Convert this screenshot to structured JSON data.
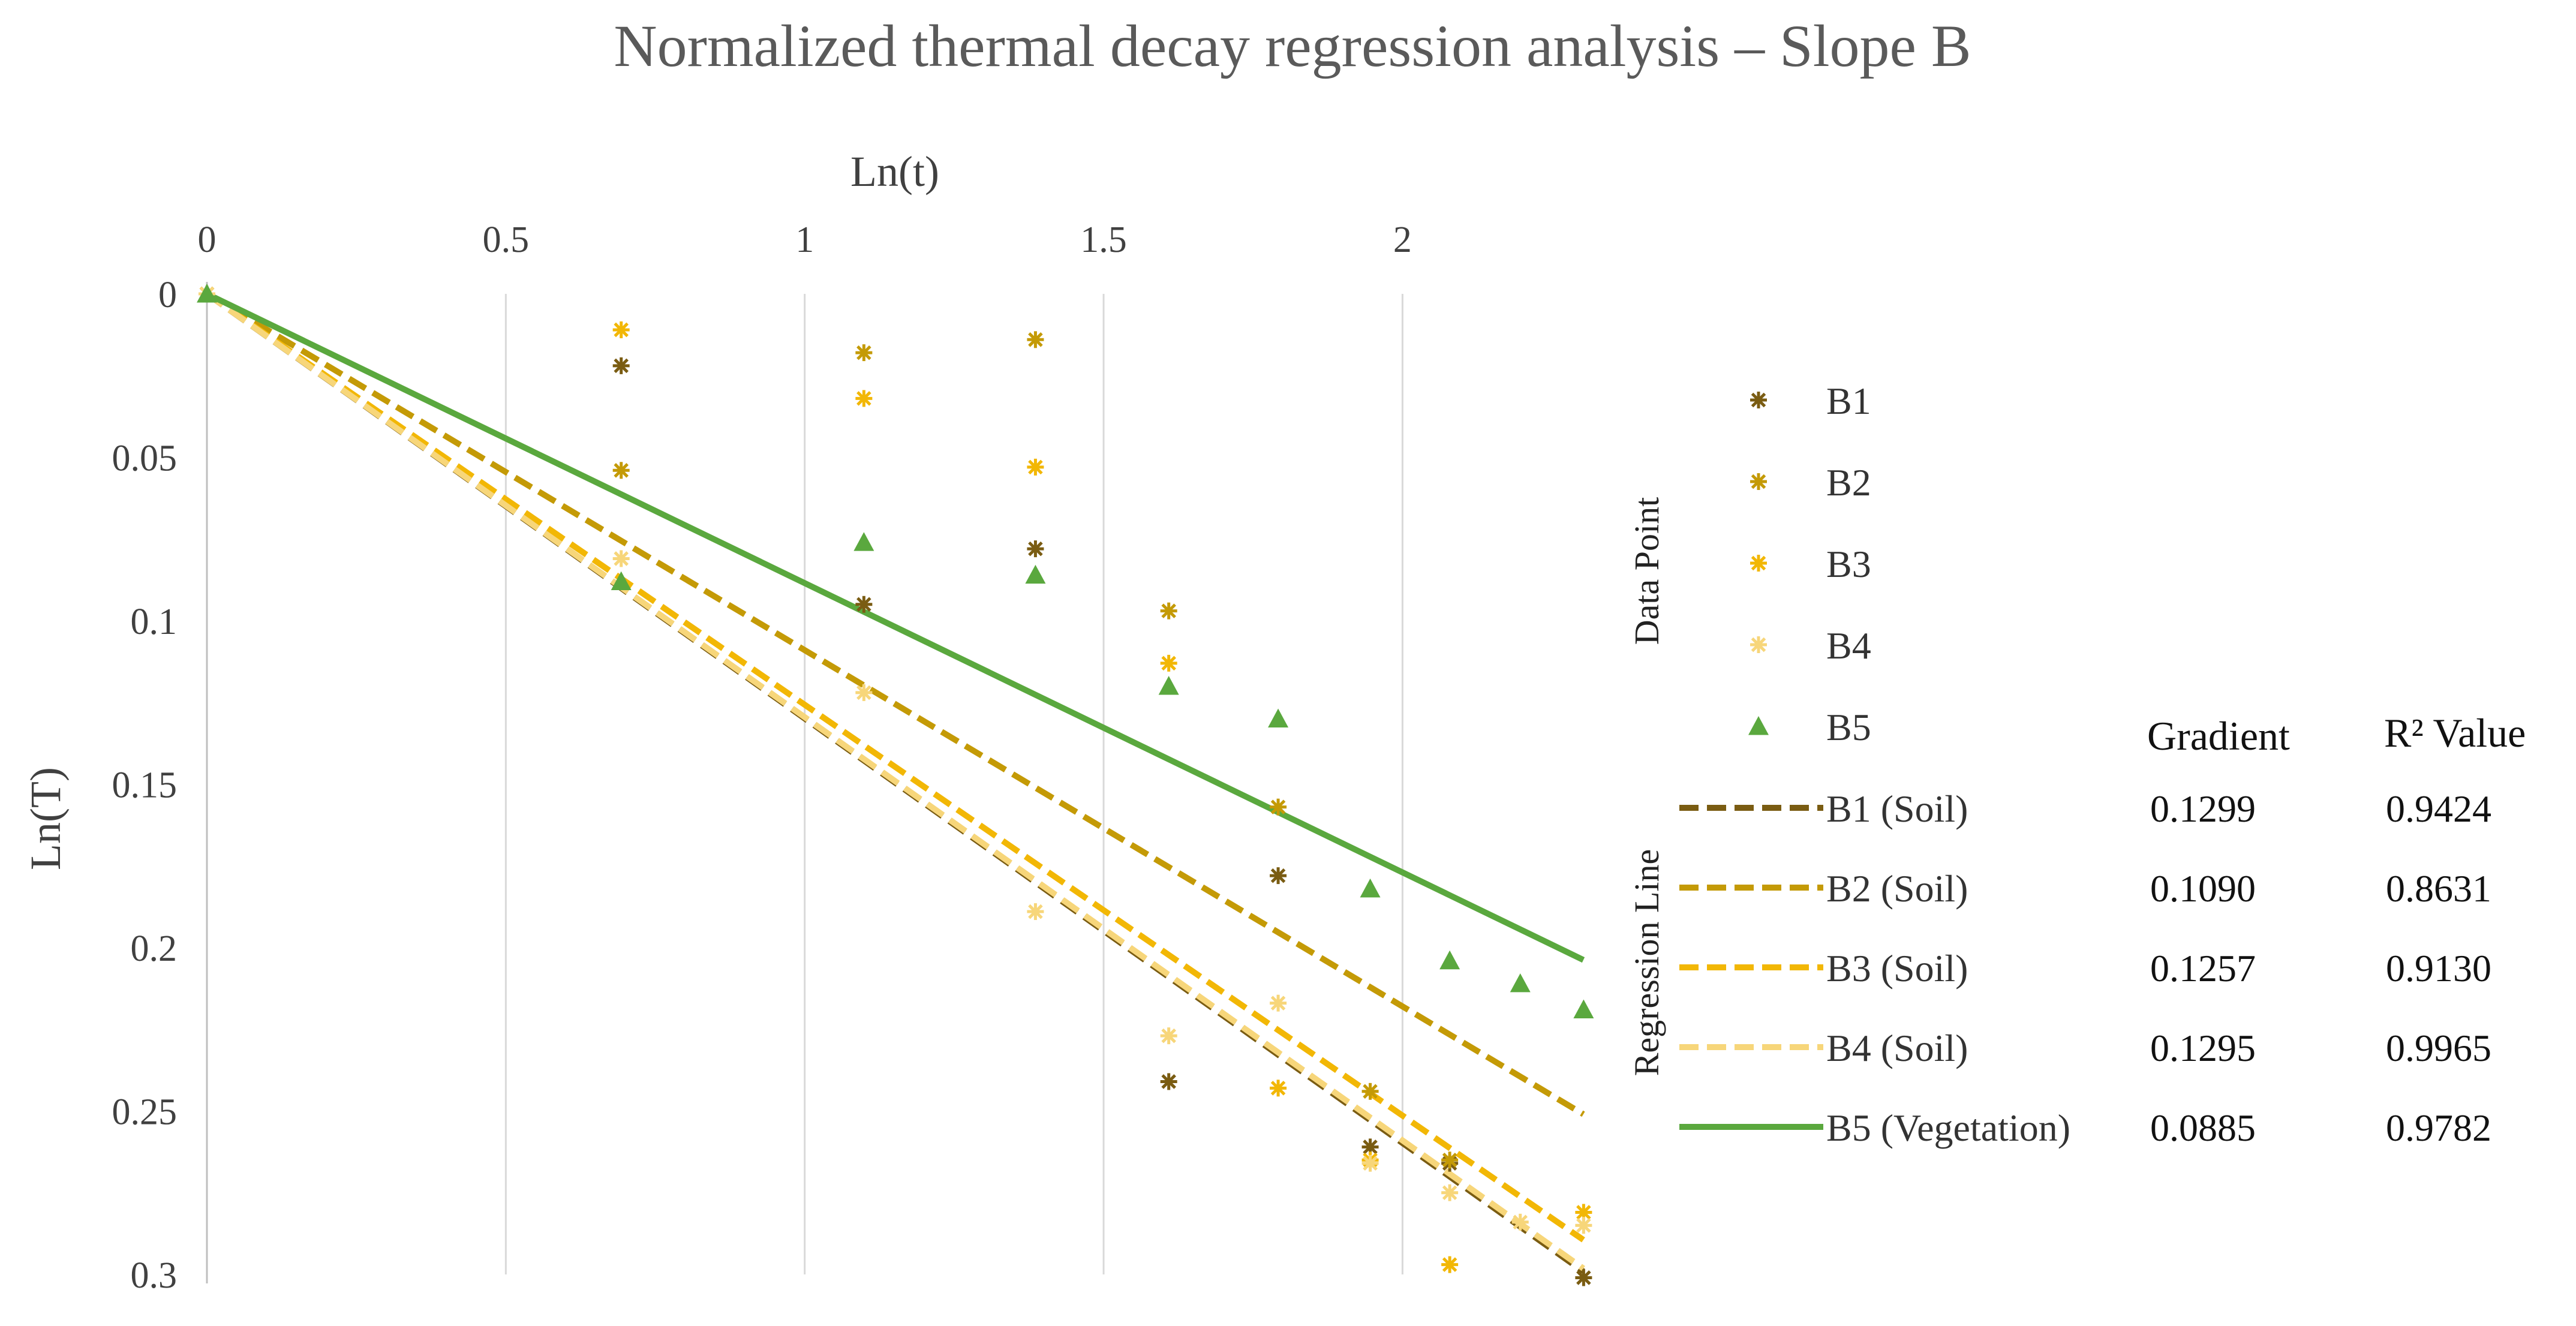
{
  "chart_data": {
    "type": "scatter",
    "title": "Normalized thermal decay regression analysis – Slope B",
    "xlabel": "Ln(t)",
    "ylabel": "Ln(T)",
    "xlim": [
      0,
      2.3026
    ],
    "ylim": [
      0,
      0.3
    ],
    "y_inverted": true,
    "x_axis_position": "top",
    "x_ticks": [
      0,
      0.5,
      1,
      1.5,
      2
    ],
    "x_tick_labels": [
      "0",
      "0.5",
      "1",
      "1.5",
      "2"
    ],
    "y_ticks": [
      0,
      0.05,
      0.1,
      0.15,
      0.2,
      0.25,
      0.3
    ],
    "y_tick_labels": [
      "0",
      "0.05",
      "0.1",
      "0.15",
      "0.2",
      "0.25",
      "0.3"
    ],
    "grid": "vertical",
    "legend_position": "right",
    "legend_group_data": "Data Point",
    "legend_group_regression": "Regression Line",
    "stats_headers": [
      "Gradient",
      "R² Value"
    ],
    "series": [
      {
        "name": "B1",
        "marker": "star",
        "color": "#7a5c12",
        "x": [
          0,
          0.693,
          1.099,
          1.386,
          1.609,
          1.792,
          1.946,
          2.079,
          2.303
        ],
        "y": [
          0,
          0.022,
          0.095,
          0.078,
          0.241,
          0.178,
          0.261,
          0.266,
          0.301
        ]
      },
      {
        "name": "B2",
        "marker": "star",
        "color": "#c49a06",
        "x": [
          0,
          0.693,
          1.099,
          1.386,
          1.609,
          1.792,
          1.946,
          2.079
        ],
        "y": [
          0,
          0.054,
          0.018,
          0.014,
          0.097,
          0.157,
          0.244,
          0.265
        ]
      },
      {
        "name": "B3",
        "marker": "star",
        "color": "#f2b705",
        "x": [
          0,
          0.693,
          1.099,
          1.386,
          1.609,
          1.792,
          1.946,
          2.079,
          2.303
        ],
        "y": [
          0,
          0.011,
          0.032,
          0.053,
          0.113,
          0.243,
          0.265,
          0.297,
          0.281
        ]
      },
      {
        "name": "B4",
        "marker": "star",
        "color": "#f7d67a",
        "x": [
          0,
          0.693,
          1.099,
          1.386,
          1.609,
          1.792,
          1.946,
          2.079,
          2.197,
          2.303
        ],
        "y": [
          0,
          0.081,
          0.122,
          0.189,
          0.227,
          0.217,
          0.266,
          0.275,
          0.284,
          0.285
        ]
      },
      {
        "name": "B5",
        "marker": "triangle",
        "color": "#5aa83e",
        "x": [
          0,
          0.693,
          1.099,
          1.386,
          1.609,
          1.792,
          1.946,
          2.079,
          2.197,
          2.303
        ],
        "y": [
          0,
          0.088,
          0.076,
          0.086,
          0.12,
          0.13,
          0.182,
          0.204,
          0.211,
          0.219
        ]
      }
    ],
    "regression": [
      {
        "name": "B1 (Soil)",
        "gradient": "0.1299",
        "r2": "0.9424",
        "slope": 0.1299,
        "style": "dashed",
        "color": "#7a5c12"
      },
      {
        "name": "B2 (Soil)",
        "gradient": "0.1090",
        "r2": "0.8631",
        "slope": 0.109,
        "style": "dashed",
        "color": "#c49a06"
      },
      {
        "name": "B3 (Soil)",
        "gradient": "0.1257",
        "r2": "0.9130",
        "slope": 0.1257,
        "style": "dashed",
        "color": "#f2b705"
      },
      {
        "name": "B4 (Soil)",
        "gradient": "0.1295",
        "r2": "0.9965",
        "slope": 0.1295,
        "style": "dashed",
        "color": "#f7d67a"
      },
      {
        "name": "B5 (Vegetation)",
        "gradient": "0.0885",
        "r2": "0.9782",
        "slope": 0.0885,
        "style": "solid",
        "color": "#5aa83e"
      }
    ]
  }
}
